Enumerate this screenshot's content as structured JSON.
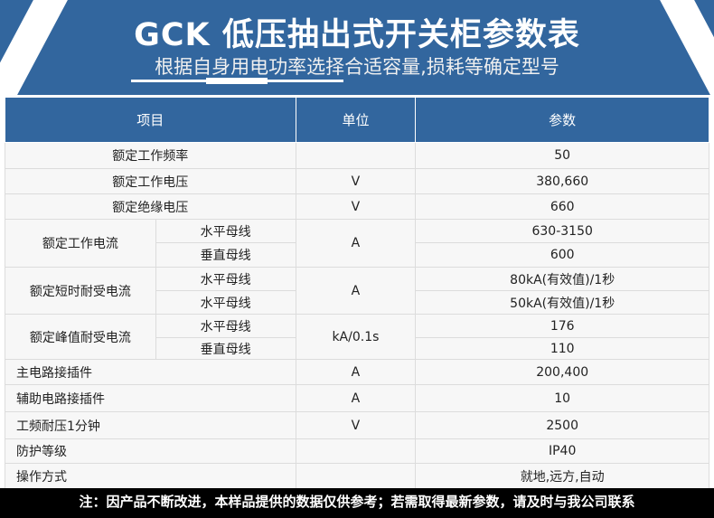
{
  "header": {
    "title": "GCK 低压抽出式开关柜参数表",
    "subtitle": "根据自身用电功率选择合适容量,损耗等确定型号"
  },
  "table": {
    "headers": [
      "项目",
      "单位",
      "参数"
    ],
    "rows": {
      "r0": {
        "item": "额定工作频率",
        "unit": "",
        "value": "50"
      },
      "r1": {
        "item": "额定工作电压",
        "unit": "V",
        "value": "380,660"
      },
      "r2": {
        "item": "额定绝缘电压",
        "unit": "V",
        "value": "660"
      },
      "r3": {
        "item": "额定工作电流",
        "unit": "A",
        "sub1": "水平母线",
        "val1": "630-3150",
        "sub2": "垂直母线",
        "val2": "600"
      },
      "r4": {
        "item": "额定短时耐受电流",
        "unit": "A",
        "sub1": "水平母线",
        "val1": "80kA(有效值)/1秒",
        "sub2": "水平母线",
        "val2": "50kA(有效值)/1秒"
      },
      "r5": {
        "item": "额定峰值耐受电流",
        "unit": "kA/0.1s",
        "sub1": "水平母线",
        "val1": "176",
        "sub2": "垂直母线",
        "val2": "110"
      },
      "r6": {
        "item": "主电路接插件",
        "unit": "A",
        "value": "200,400"
      },
      "r7": {
        "item": "辅助电路接插件",
        "unit": "A",
        "value": "10"
      },
      "r8": {
        "item": "工频耐压1分钟",
        "unit": "V",
        "value": "2500"
      },
      "r9": {
        "item": "防护等级",
        "unit": "",
        "value": "IP40"
      },
      "r10": {
        "item": "操作方式",
        "unit": "",
        "value": "就地,远方,自动"
      }
    }
  },
  "footer": "注：因产品不断改进，本样品提供的数据仅供参考；若需取得最新参数，请及时与我公司联系"
}
